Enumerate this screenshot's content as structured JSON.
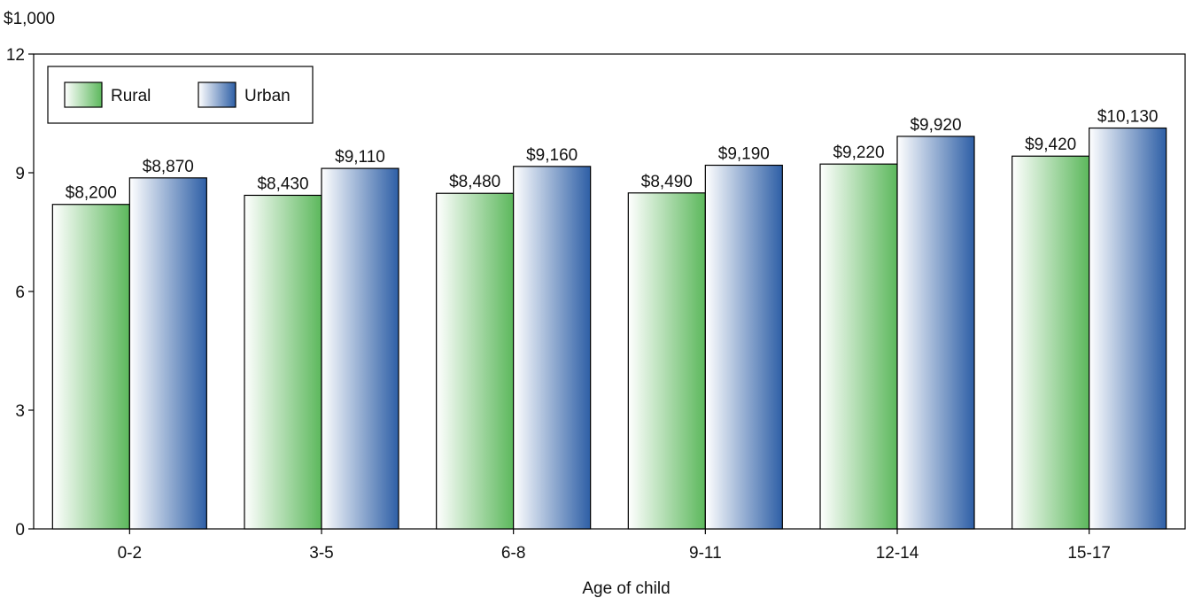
{
  "chart_data": {
    "type": "bar",
    "title": "",
    "unit_label": "$1,000",
    "xlabel": "Age of child",
    "ylabel": "",
    "categories": [
      "0-2",
      "3-5",
      "6-8",
      "9-11",
      "12-14",
      "15-17"
    ],
    "series": [
      {
        "name": "Rural",
        "values": [
          8200,
          8430,
          8480,
          8490,
          9220,
          9420
        ],
        "labels": [
          "$8,200",
          "$8,430",
          "$8,480",
          "$8,490",
          "$9,220",
          "$9,420"
        ],
        "color": "#5cb85c"
      },
      {
        "name": "Urban",
        "values": [
          8870,
          9110,
          9160,
          9190,
          9920,
          10130
        ],
        "labels": [
          "$8,870",
          "$9,110",
          "$9,160",
          "$9,190",
          "$9,920",
          "$10,130"
        ],
        "color": "#2e5fa6"
      }
    ],
    "ylim": [
      0,
      12
    ],
    "y_ticks": [
      0,
      3,
      6,
      9,
      12
    ],
    "y_scale": 1000,
    "grid": false,
    "legend_position": "top-left"
  }
}
